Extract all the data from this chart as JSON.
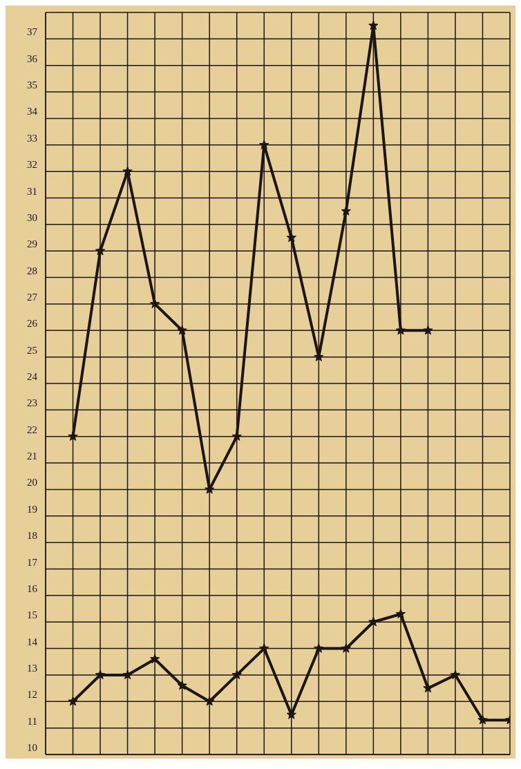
{
  "chart_data": {
    "type": "line",
    "categories": [
      null,
      null,
      null,
      null,
      null,
      null,
      null,
      null,
      null,
      null,
      null,
      null,
      null,
      null,
      null,
      null,
      null,
      null
    ],
    "series": [
      {
        "color": "#1c1510",
        "values": [
          null,
          22,
          29,
          32,
          27,
          26,
          20,
          22,
          33,
          29.5,
          25,
          30.5,
          37.5,
          26,
          26,
          null,
          null,
          null
        ]
      },
      {
        "color": "#1c1510",
        "values": [
          null,
          12,
          13,
          13,
          13.6,
          12.6,
          12,
          13,
          14,
          11.5,
          14,
          14,
          15,
          15.3,
          12.5,
          13,
          11.3,
          11.3
        ]
      }
    ],
    "ylim": [
      10,
      38
    ],
    "yticks": [
      10,
      11,
      12,
      13,
      14,
      15,
      16,
      17,
      18,
      19,
      20,
      21,
      22,
      23,
      24,
      25,
      26,
      27,
      28,
      29,
      30,
      31,
      32,
      33,
      34,
      35,
      36,
      37
    ],
    "grid": true,
    "tick_labels": "y",
    "marker": "star",
    "line_style": "solid"
  }
}
